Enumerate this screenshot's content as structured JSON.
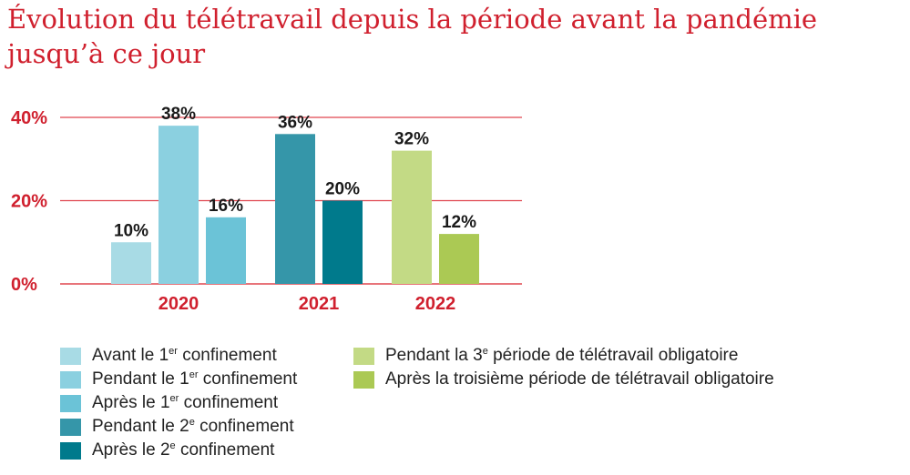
{
  "title": "Évolution du télétravail depuis la période avant la pandémie jusqu’à ce jour",
  "chart_data": {
    "type": "bar",
    "title": "Évolution du télétravail depuis la période avant la pandémie jusqu’à ce jour",
    "ylim": [
      0,
      40
    ],
    "y_ticks": [
      {
        "value": 0,
        "label": "0%"
      },
      {
        "value": 20,
        "label": "20%"
      },
      {
        "value": 40,
        "label": "40%"
      }
    ],
    "grid": true,
    "categories": [
      "2020",
      "2021",
      "2022"
    ],
    "bars": [
      {
        "category": "2020",
        "series": 0,
        "value": 10,
        "label": "10%"
      },
      {
        "category": "2020",
        "series": 1,
        "value": 38,
        "label": "38%"
      },
      {
        "category": "2020",
        "series": 2,
        "value": 16,
        "label": "16%"
      },
      {
        "category": "2021",
        "series": 3,
        "value": 36,
        "label": "36%"
      },
      {
        "category": "2021",
        "series": 4,
        "value": 20,
        "label": "20%"
      },
      {
        "category": "2022",
        "series": 5,
        "value": 32,
        "label": "32%"
      },
      {
        "category": "2022",
        "series": 6,
        "value": 12,
        "label": "12%"
      }
    ],
    "series": [
      {
        "name": "Avant le 1er confinement",
        "pre": "Avant le 1",
        "sup": "er",
        "post": " confinement",
        "color": "#a8dbe5"
      },
      {
        "name": "Pendant le 1er confinement",
        "pre": "Pendant le 1",
        "sup": "er",
        "post": " confinement",
        "color": "#8bd0e0"
      },
      {
        "name": "Après le 1er confinement",
        "pre": "Après le 1",
        "sup": "er",
        "post": " confinement",
        "color": "#6bc3d7"
      },
      {
        "name": "Pendant le 2e confinement",
        "pre": "Pendant le 2",
        "sup": "e",
        "post": " confinement",
        "color": "#3596a9"
      },
      {
        "name": "Après le 2e confinement",
        "pre": "Après le 2",
        "sup": "e",
        "post": " confinement",
        "color": "#007a8c"
      },
      {
        "name": "Pendant la 3e période de télétravail obligatoire",
        "pre": "Pendant la 3",
        "sup": "e",
        "post": " période de télétravail obligatoire",
        "color": "#c3da85"
      },
      {
        "name": "Après la troisième période de télétravail obligatoire",
        "pre": "Après la troisième période de télétravail obligatoire",
        "sup": "",
        "post": "",
        "color": "#abc954"
      }
    ],
    "legend_placement": "bottom",
    "grid_color": "#e0464f"
  }
}
